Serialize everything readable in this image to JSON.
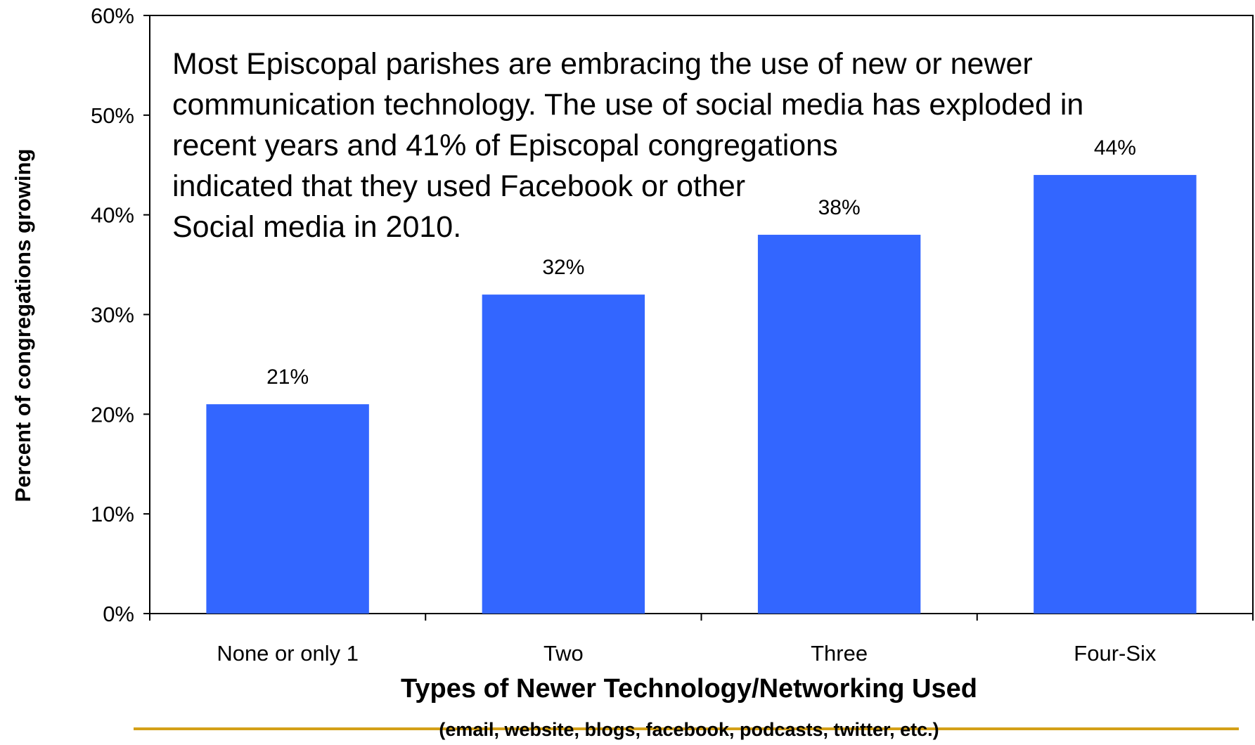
{
  "colors": {
    "bar": "#3366FF",
    "axis": "#000000",
    "footer_rule": "#D4A017"
  },
  "annotation": {
    "lines": [
      "Most Episcopal parishes are embracing the use of new or newer",
      "communication technology. The use of social media has exploded in",
      "recent years and 41% of Episcopal congregations",
      "indicated that they used Facebook or other",
      "Social media in 2010."
    ]
  },
  "chart_data": {
    "type": "bar",
    "categories": [
      "None or only 1",
      "Two",
      "Three",
      "Four-Six"
    ],
    "values": [
      21,
      32,
      38,
      44
    ],
    "data_labels": [
      "21%",
      "32%",
      "38%",
      "44%"
    ],
    "xlabel": "Types of Newer Technology/Networking Used",
    "xlabel_sub": "(email, website, blogs, facebook, podcasts, twitter, etc.)",
    "ylabel": "Percent of congregations growing",
    "ylim": [
      0,
      60
    ],
    "yticks": [
      0,
      10,
      20,
      30,
      40,
      50,
      60
    ],
    "ytick_labels": [
      "0%",
      "10%",
      "20%",
      "30%",
      "40%",
      "50%",
      "60%"
    ],
    "grid": false,
    "legend": "none"
  }
}
